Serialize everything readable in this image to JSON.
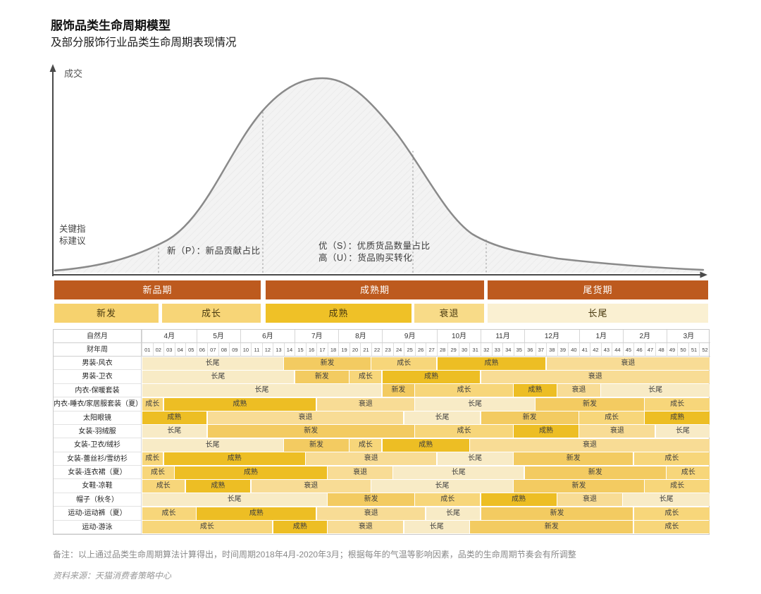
{
  "header": {
    "title": "服饰品类生命周期模型",
    "subtitle": "及部分服饰行业品类生命周期表现情况"
  },
  "chart": {
    "y_axis_label": "成交",
    "key_note": "关键指标建议",
    "annotations": [
      "新（P）：新品贡献占比",
      "优（S）：优质货品数量占比",
      "高（U）：货品购买转化"
    ]
  },
  "phase_labels": {
    "new": "新发",
    "growth": "成长",
    "mature": "成熟",
    "decline": "衰退",
    "longtail": "长尾"
  },
  "colors": {
    "stage_bar": "#BD5A1E",
    "new": "#F3CB61",
    "growth": "#F7D67A",
    "mature": "#EDBE24",
    "decline": "#F8DC95",
    "longtail": "#F8EBC6",
    "bar_new": "#F6D26E",
    "bar_growth": "#F7D577",
    "bar_mature": "#EFC127",
    "bar_decline": "#F8DB88",
    "bar_longtail": "#FAF0D2",
    "curve_stroke": "#8a8a8a",
    "axis": "#4a4a4a"
  },
  "chart_data": [
    {
      "type": "area",
      "title": "服饰品类生命周期模型",
      "xlabel": "",
      "ylabel": "成交",
      "description": "钟形品类生命周期示意曲线（定性，无数值刻度）",
      "x_normalized": [
        0,
        0.06,
        0.12,
        0.18,
        0.24,
        0.3,
        0.34,
        0.38,
        0.41,
        0.44,
        0.48,
        0.52,
        0.56,
        0.6,
        0.64,
        0.7,
        0.78,
        0.88,
        1.0
      ],
      "y_normalized": [
        0.02,
        0.04,
        0.09,
        0.18,
        0.35,
        0.62,
        0.82,
        0.95,
        1.0,
        0.97,
        0.88,
        0.7,
        0.5,
        0.32,
        0.2,
        0.11,
        0.06,
        0.03,
        0.02
      ],
      "annotations": [
        "新（P）：新品贡献占比",
        "优（S）：优质货品数量占比",
        "高（U）：货品购买转化"
      ],
      "stages": [
        "新品期",
        "成熟期",
        "尾货期"
      ],
      "sub_stages": [
        {
          "label": "新发",
          "phase": "new"
        },
        {
          "label": "成长",
          "phase": "growth"
        },
        {
          "label": "成熟",
          "phase": "mature"
        },
        {
          "label": "衰退",
          "phase": "decline"
        },
        {
          "label": "长尾",
          "phase": "longtail"
        }
      ],
      "legend_position": "none",
      "grid": false
    },
    {
      "type": "table",
      "corner": [
        "自然月",
        "财年周"
      ],
      "months": [
        {
          "label": "4月",
          "weeks": 5
        },
        {
          "label": "5月",
          "weeks": 4
        },
        {
          "label": "6月",
          "weeks": 5
        },
        {
          "label": "7月",
          "weeks": 4
        },
        {
          "label": "8月",
          "weeks": 4
        },
        {
          "label": "9月",
          "weeks": 5
        },
        {
          "label": "10月",
          "weeks": 4
        },
        {
          "label": "11月",
          "weeks": 4
        },
        {
          "label": "12月",
          "weeks": 5
        },
        {
          "label": "1月",
          "weeks": 4
        },
        {
          "label": "2月",
          "weeks": 4
        },
        {
          "label": "3月",
          "weeks": 4
        }
      ],
      "week_numbers": [
        "01",
        "02",
        "03",
        "04",
        "05",
        "06",
        "07",
        "08",
        "09",
        "10",
        "11",
        "12",
        "13",
        "14",
        "15",
        "16",
        "17",
        "18",
        "19",
        "20",
        "21",
        "22",
        "23",
        "24",
        "25",
        "26",
        "27",
        "28",
        "29",
        "30",
        "31",
        "32",
        "33",
        "34",
        "35",
        "36",
        "37",
        "38",
        "39",
        "40",
        "41",
        "42",
        "43",
        "44",
        "45",
        "46",
        "47",
        "48",
        "49",
        "50",
        "51",
        "52"
      ],
      "rows": [
        {
          "category": "男装-风衣",
          "segments": [
            {
              "phase": "longtail",
              "weeks": 13
            },
            {
              "phase": "new",
              "weeks": 8
            },
            {
              "phase": "growth",
              "weeks": 6
            },
            {
              "phase": "mature",
              "weeks": 10
            },
            {
              "phase": "decline",
              "weeks": 15
            }
          ]
        },
        {
          "category": "男装-卫衣",
          "segments": [
            {
              "phase": "longtail",
              "weeks": 14
            },
            {
              "phase": "new",
              "weeks": 5
            },
            {
              "phase": "growth",
              "weeks": 3
            },
            {
              "phase": "mature",
              "weeks": 9
            },
            {
              "phase": "decline",
              "weeks": 21
            }
          ]
        },
        {
          "category": "内衣-保暖套装",
          "segments": [
            {
              "phase": "longtail",
              "weeks": 22
            },
            {
              "phase": "new",
              "weeks": 3
            },
            {
              "phase": "growth",
              "weeks": 9
            },
            {
              "phase": "mature",
              "weeks": 4
            },
            {
              "phase": "decline",
              "weeks": 4
            },
            {
              "phase": "longtail",
              "weeks": 10
            }
          ]
        },
        {
          "category": "内衣-睡衣/家居服套装（夏）",
          "segments": [
            {
              "phase": "growth",
              "weeks": 2
            },
            {
              "phase": "mature",
              "weeks": 14
            },
            {
              "phase": "decline",
              "weeks": 9
            },
            {
              "phase": "longtail",
              "weeks": 11
            },
            {
              "phase": "new",
              "weeks": 10
            },
            {
              "phase": "growth",
              "weeks": 6
            }
          ]
        },
        {
          "category": "太阳眼镜",
          "segments": [
            {
              "phase": "mature",
              "weeks": 6
            },
            {
              "phase": "decline",
              "weeks": 18
            },
            {
              "phase": "longtail",
              "weeks": 7
            },
            {
              "phase": "new",
              "weeks": 9
            },
            {
              "phase": "growth",
              "weeks": 6
            },
            {
              "phase": "mature",
              "weeks": 6
            }
          ]
        },
        {
          "category": "女装-羽绒服",
          "segments": [
            {
              "phase": "longtail",
              "weeks": 6
            },
            {
              "phase": "new",
              "weeks": 19
            },
            {
              "phase": "growth",
              "weeks": 9
            },
            {
              "phase": "mature",
              "weeks": 6
            },
            {
              "phase": "decline",
              "weeks": 7
            },
            {
              "phase": "longtail",
              "weeks": 5
            }
          ]
        },
        {
          "category": "女装-卫衣/绒衫",
          "segments": [
            {
              "phase": "longtail",
              "weeks": 13
            },
            {
              "phase": "new",
              "weeks": 6
            },
            {
              "phase": "growth",
              "weeks": 3
            },
            {
              "phase": "mature",
              "weeks": 8
            },
            {
              "phase": "decline",
              "weeks": 22
            }
          ]
        },
        {
          "category": "女装-蕾丝衫/雪纺衫",
          "segments": [
            {
              "phase": "growth",
              "weeks": 2
            },
            {
              "phase": "mature",
              "weeks": 13
            },
            {
              "phase": "decline",
              "weeks": 12
            },
            {
              "phase": "longtail",
              "weeks": 7
            },
            {
              "phase": "new",
              "weeks": 11
            },
            {
              "phase": "growth",
              "weeks": 7
            }
          ]
        },
        {
          "category": "女装-连衣裙（夏）",
          "segments": [
            {
              "phase": "growth",
              "weeks": 3
            },
            {
              "phase": "mature",
              "weeks": 14
            },
            {
              "phase": "decline",
              "weeks": 6
            },
            {
              "phase": "longtail",
              "weeks": 12
            },
            {
              "phase": "new",
              "weeks": 13
            },
            {
              "phase": "growth",
              "weeks": 4
            }
          ]
        },
        {
          "category": "女鞋-凉鞋",
          "segments": [
            {
              "phase": "growth",
              "weeks": 4
            },
            {
              "phase": "mature",
              "weeks": 6
            },
            {
              "phase": "decline",
              "weeks": 11
            },
            {
              "phase": "longtail",
              "weeks": 13
            },
            {
              "phase": "new",
              "weeks": 12
            },
            {
              "phase": "growth",
              "weeks": 6
            }
          ]
        },
        {
          "category": "帽子（秋冬）",
          "segments": [
            {
              "phase": "longtail",
              "weeks": 17
            },
            {
              "phase": "new",
              "weeks": 8
            },
            {
              "phase": "growth",
              "weeks": 6
            },
            {
              "phase": "mature",
              "weeks": 7
            },
            {
              "phase": "decline",
              "weeks": 6
            },
            {
              "phase": "longtail",
              "weeks": 8
            }
          ]
        },
        {
          "category": "运动-运动裤（夏）",
          "segments": [
            {
              "phase": "growth",
              "weeks": 5
            },
            {
              "phase": "mature",
              "weeks": 11
            },
            {
              "phase": "decline",
              "weeks": 10
            },
            {
              "phase": "longtail",
              "weeks": 5
            },
            {
              "phase": "new",
              "weeks": 14
            },
            {
              "phase": "growth",
              "weeks": 7
            }
          ]
        },
        {
          "category": "运动-游泳",
          "segments": [
            {
              "phase": "growth",
              "weeks": 12
            },
            {
              "phase": "mature",
              "weeks": 5
            },
            {
              "phase": "decline",
              "weeks": 7
            },
            {
              "phase": "longtail",
              "weeks": 6
            },
            {
              "phase": "new",
              "weeks": 15
            },
            {
              "phase": "growth",
              "weeks": 7
            }
          ]
        }
      ]
    }
  ],
  "footer": {
    "note": "备注：以上通过品类生命周期算法计算得出，时间周期2018年4月-2020年3月；根据每年的气温等影响因素，品类的生命周期节奏会有所调整",
    "source": "资料来源：天猫消费者策略中心"
  }
}
